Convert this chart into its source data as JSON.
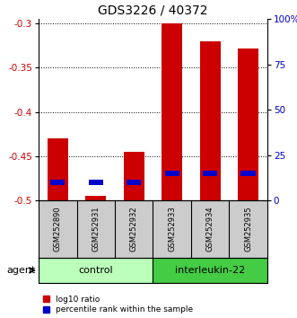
{
  "title": "GDS3226 / 40372",
  "samples": [
    "GSM252890",
    "GSM252931",
    "GSM252932",
    "GSM252933",
    "GSM252934",
    "GSM252935"
  ],
  "log10_ratio": [
    -0.43,
    -0.495,
    -0.445,
    -0.3,
    -0.32,
    -0.328
  ],
  "percentile_rank_pct": [
    10,
    10,
    10,
    15,
    15,
    15
  ],
  "ylim_left": [
    -0.5,
    -0.295
  ],
  "ylim_right": [
    0,
    100
  ],
  "yticks_left": [
    -0.5,
    -0.45,
    -0.4,
    -0.35,
    -0.3
  ],
  "yticks_right": [
    0,
    25,
    50,
    75,
    100
  ],
  "ytick_labels_right": [
    "0",
    "25",
    "50",
    "75",
    "100%"
  ],
  "bar_width": 0.55,
  "red_color": "#cc0000",
  "blue_color": "#0000cc",
  "control_color": "#bbffbb",
  "interleukin_color": "#44cc44",
  "sample_box_color": "#cccccc",
  "group_labels": [
    "control",
    "interleukin-22"
  ],
  "control_indices": [
    0,
    1,
    2
  ],
  "il_indices": [
    3,
    4,
    5
  ],
  "agent_label": "agent",
  "legend_red": "log10 ratio",
  "legend_blue": "percentile rank within the sample"
}
